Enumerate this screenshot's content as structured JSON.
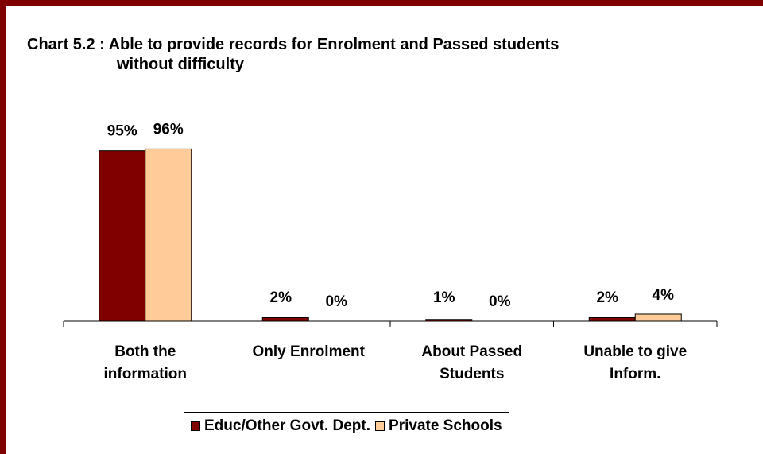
{
  "chart_data": {
    "type": "bar",
    "title_line1": "Chart 5.2 : Able to provide records for Enrolment and Passed students",
    "title_line2": "without difficulty",
    "categories": [
      [
        "Both the",
        "information"
      ],
      [
        "Only Enrolment"
      ],
      [
        "About Passed",
        "Students"
      ],
      [
        "Unable to give",
        "Inform."
      ]
    ],
    "series": [
      {
        "name": "Educ/Other Govt. Dept.",
        "color": "#800000",
        "values": [
          95,
          2,
          1,
          2
        ],
        "labels": [
          "95%",
          "2%",
          "1%",
          "2%"
        ]
      },
      {
        "name": "Private Schools",
        "color": "#ffcc99",
        "values": [
          96,
          0,
          0,
          4
        ],
        "labels": [
          "96%",
          "0%",
          "0%",
          "4%"
        ]
      }
    ],
    "ylim": [
      0,
      100
    ],
    "yaxis_visible": false,
    "grid": false,
    "legend_position": "bottom"
  }
}
